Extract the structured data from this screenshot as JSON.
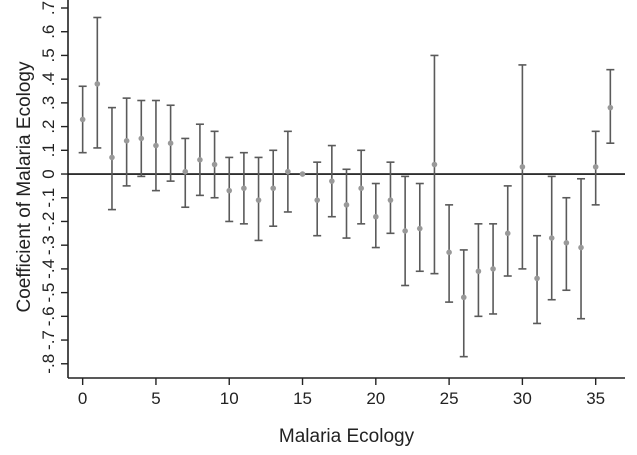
{
  "chart_data": {
    "type": "scatter",
    "title": "",
    "xlabel": "Malaria Ecology",
    "ylabel": "Coefficient of Malaria Ecology",
    "xlim": [
      -1,
      37
    ],
    "ylim": [
      -0.86,
      0.7
    ],
    "x_ticks": [
      0,
      5,
      10,
      15,
      20,
      25,
      30,
      35
    ],
    "y_ticks": [
      {
        "v": -0.8,
        "label": "-.8"
      },
      {
        "v": -0.7,
        "label": "-.7"
      },
      {
        "v": -0.6,
        "label": "-.6"
      },
      {
        "v": -0.5,
        "label": "-.5"
      },
      {
        "v": -0.4,
        "label": "-.4"
      },
      {
        "v": -0.3,
        "label": "-.3"
      },
      {
        "v": -0.2,
        "label": "-.2"
      },
      {
        "v": -0.1,
        "label": "-.1"
      },
      {
        "v": 0.0,
        "label": "0"
      },
      {
        "v": 0.1,
        "label": ".1"
      },
      {
        "v": 0.2,
        "label": ".2"
      },
      {
        "v": 0.3,
        "label": ".3"
      },
      {
        "v": 0.4,
        "label": ".4"
      },
      {
        "v": 0.5,
        "label": ".5"
      },
      {
        "v": 0.6,
        "label": ".6"
      },
      {
        "v": 0.7,
        "label": ".7"
      }
    ],
    "reference_line": 0,
    "grid": false,
    "legend": "none",
    "colors": {
      "point": "#999999",
      "errorbar": "#5a5a5a",
      "axis": "#222222",
      "reference": "#111111"
    },
    "series": [
      {
        "x": [
          0,
          1,
          2,
          3,
          4,
          5,
          6,
          7,
          8,
          9,
          10,
          11,
          12,
          13,
          14,
          15,
          16,
          17,
          18,
          19,
          20,
          21,
          22,
          23,
          24,
          25,
          26,
          27,
          28,
          29,
          30,
          31,
          32,
          33,
          34,
          35,
          36
        ],
        "y": [
          0.23,
          0.38,
          0.07,
          0.14,
          0.15,
          0.12,
          0.13,
          0.01,
          0.06,
          0.04,
          -0.07,
          -0.06,
          -0.11,
          -0.06,
          0.01,
          0.0,
          -0.11,
          -0.03,
          -0.13,
          -0.06,
          -0.18,
          -0.11,
          -0.24,
          -0.23,
          0.04,
          -0.33,
          -0.52,
          -0.41,
          -0.4,
          -0.25,
          0.03,
          -0.44,
          -0.27,
          -0.29,
          -0.31,
          0.03,
          0.28
        ],
        "lo": [
          0.09,
          0.11,
          -0.15,
          -0.05,
          -0.01,
          -0.07,
          -0.03,
          -0.14,
          -0.09,
          -0.1,
          -0.2,
          -0.21,
          -0.28,
          -0.22,
          -0.16,
          0.0,
          -0.26,
          -0.18,
          -0.27,
          -0.21,
          -0.31,
          -0.25,
          -0.47,
          -0.41,
          -0.42,
          -0.54,
          -0.77,
          -0.6,
          -0.59,
          -0.43,
          -0.4,
          -0.63,
          -0.53,
          -0.49,
          -0.61,
          -0.13,
          0.13
        ],
        "hi": [
          0.37,
          0.66,
          0.28,
          0.32,
          0.31,
          0.31,
          0.29,
          0.15,
          0.21,
          0.18,
          0.07,
          0.09,
          0.07,
          0.1,
          0.18,
          0.0,
          0.05,
          0.12,
          0.02,
          0.1,
          -0.04,
          0.05,
          -0.01,
          -0.04,
          0.5,
          -0.13,
          -0.32,
          -0.21,
          -0.21,
          -0.05,
          0.46,
          -0.26,
          -0.01,
          -0.1,
          -0.02,
          0.18,
          0.44
        ]
      }
    ]
  }
}
